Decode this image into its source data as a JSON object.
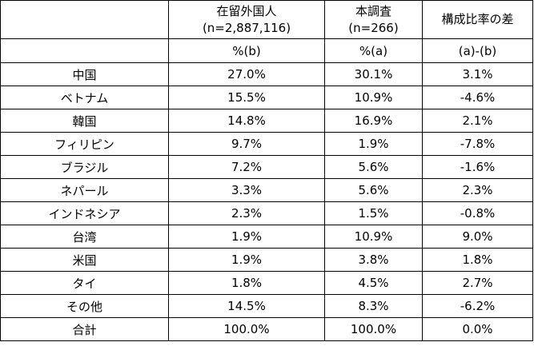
{
  "header": {
    "col1_line1": "在留外国人",
    "col1_line2": "(n=2,887,116)",
    "col2_line1": "本調査",
    "col2_line2": "(n=266)",
    "col3": "構成比率の差",
    "col1_unit": "%(b)",
    "col2_unit": "%(a)",
    "col3_unit": "(a)-(b)"
  },
  "rows": [
    {
      "label": "中国",
      "b": "27.0%",
      "a": "30.1%",
      "diff": "3.1%"
    },
    {
      "label": "ベトナム",
      "b": "15.5%",
      "a": "10.9%",
      "diff": "-4.6%"
    },
    {
      "label": "韓国",
      "b": "14.8%",
      "a": "16.9%",
      "diff": "2.1%"
    },
    {
      "label": "フィリピン",
      "b": "9.7%",
      "a": "1.9%",
      "diff": "-7.8%"
    },
    {
      "label": "ブラジル",
      "b": "7.2%",
      "a": "5.6%",
      "diff": "-1.6%"
    },
    {
      "label": "ネパール",
      "b": "3.3%",
      "a": "5.6%",
      "diff": "2.3%"
    },
    {
      "label": "インドネシア",
      "b": "2.3%",
      "a": "1.5%",
      "diff": "-0.8%"
    },
    {
      "label": "台湾",
      "b": "1.9%",
      "a": "10.9%",
      "diff": "9.0%"
    },
    {
      "label": "米国",
      "b": "1.9%",
      "a": "3.8%",
      "diff": "1.8%"
    },
    {
      "label": "タイ",
      "b": "1.8%",
      "a": "4.5%",
      "diff": "2.7%"
    },
    {
      "label": "その他",
      "b": "14.5%",
      "a": "8.3%",
      "diff": "-6.2%"
    },
    {
      "label": "合計",
      "b": "100.0%",
      "a": "100.0%",
      "diff": "0.0%"
    }
  ]
}
